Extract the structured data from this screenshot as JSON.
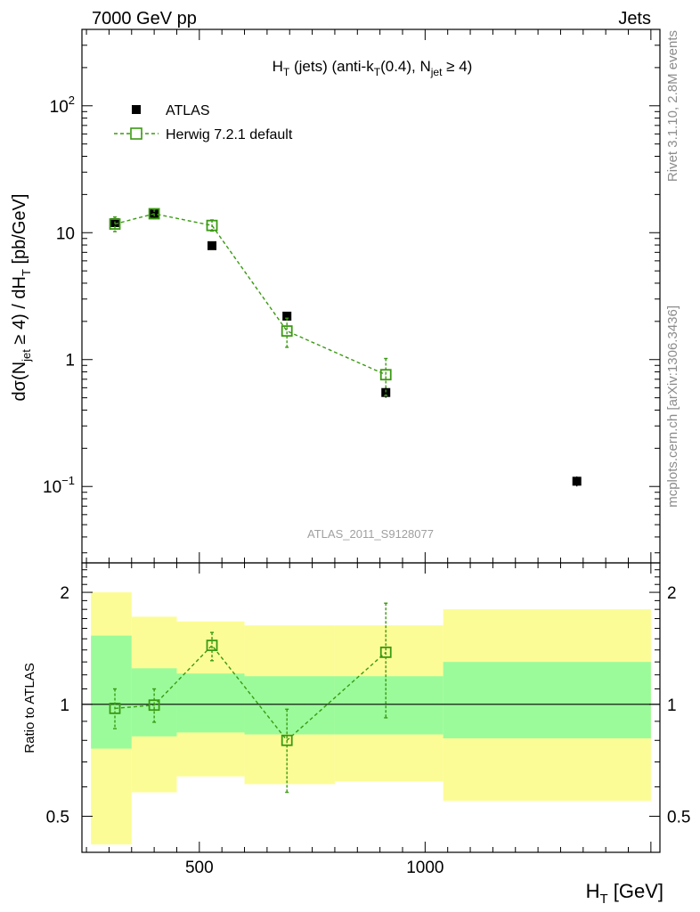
{
  "header": {
    "left": "7000 GeV pp",
    "right": "Jets"
  },
  "side_text": {
    "rivet": "Rivet 3.1.10,  2.8M events",
    "mcplots": "mcplots.cern.ch [arXiv:1306.3436]"
  },
  "watermark": "ATLAS_2011_S9128077",
  "colors": {
    "data": "#000000",
    "mc": "#3a9a12",
    "band_inner": "#9bfb9b",
    "band_outer": "#fcfc96"
  },
  "chart_data": [
    {
      "type": "scatter",
      "panel": "main",
      "title": "H_T (jets) (anti-k_T(0.4), N_jet ≥ 4)",
      "xlabel": "H_T [GeV]",
      "ylabel": "dσ(N_jet ≥ 4) / dH_T [pb/GeV]",
      "yscale": "log",
      "xlim": [
        240,
        1520
      ],
      "ylim": [
        0.025,
        400
      ],
      "legend_position": "top-left",
      "y_ticks": [
        {
          "value": 0.1,
          "base": "10",
          "exp": "−1"
        },
        {
          "value": 1,
          "label": "1"
        },
        {
          "value": 10,
          "label": "10"
        },
        {
          "value": 100,
          "base": "10",
          "exp": "2"
        }
      ],
      "series": [
        {
          "name": "ATLAS",
          "marker": "filled-square",
          "points": [
            {
              "x": 313,
              "y": 12.0,
              "yerr": 0.8
            },
            {
              "x": 400,
              "y": 14.2,
              "yerr": 0.9
            },
            {
              "x": 528,
              "y": 7.9,
              "yerr": 0.5
            },
            {
              "x": 694,
              "y": 2.2,
              "yerr": 0.15
            },
            {
              "x": 913,
              "y": 0.55,
              "yerr": 0.05
            },
            {
              "x": 1336,
              "y": 0.11,
              "yerr": 0.01
            }
          ]
        },
        {
          "name": "Herwig 7.2.1 default",
          "marker": "open-square",
          "line": "dashed",
          "points": [
            {
              "x": 313,
              "y": 11.7,
              "ylow": 10.2,
              "yhigh": 13.3
            },
            {
              "x": 400,
              "y": 14.1,
              "ylow": 12.9,
              "yhigh": 15.3
            },
            {
              "x": 528,
              "y": 11.4,
              "ylow": 10.3,
              "yhigh": 12.6
            },
            {
              "x": 694,
              "y": 1.68,
              "ylow": 1.25,
              "yhigh": 2.12
            },
            {
              "x": 913,
              "y": 0.76,
              "ylow": 0.52,
              "yhigh": 1.02
            }
          ]
        }
      ]
    },
    {
      "type": "scatter",
      "panel": "ratio",
      "xlabel": "H_T [GeV]",
      "ylabel": "Ratio to ATLAS",
      "yscale": "log",
      "xlim": [
        240,
        1520
      ],
      "ylim": [
        0.4,
        2.4
      ],
      "x_ticks": [
        500,
        1000
      ],
      "y_ticks": [
        0.5,
        1,
        2
      ],
      "bands": [
        {
          "xlo": 260,
          "xhi": 350,
          "inner": [
            0.76,
            1.53
          ],
          "outer": [
            0.42,
            2.0
          ]
        },
        {
          "xlo": 350,
          "xhi": 450,
          "inner": [
            0.82,
            1.25
          ],
          "outer": [
            0.58,
            1.72
          ]
        },
        {
          "xlo": 450,
          "xhi": 600,
          "inner": [
            0.84,
            1.21
          ],
          "outer": [
            0.64,
            1.67
          ]
        },
        {
          "xlo": 600,
          "xhi": 800,
          "inner": [
            0.83,
            1.19
          ],
          "outer": [
            0.61,
            1.63
          ]
        },
        {
          "xlo": 800,
          "xhi": 1040,
          "inner": [
            0.83,
            1.19
          ],
          "outer": [
            0.62,
            1.63
          ]
        },
        {
          "xlo": 1040,
          "xhi": 1500,
          "inner": [
            0.81,
            1.3
          ],
          "outer": [
            0.55,
            1.8
          ]
        }
      ],
      "reference": 1,
      "series": [
        {
          "name": "Herwig 7.2.1 default",
          "marker": "open-square",
          "line": "dashed",
          "points": [
            {
              "x": 313,
              "y": 0.975,
              "ylow": 0.86,
              "yhigh": 1.1
            },
            {
              "x": 400,
              "y": 0.995,
              "ylow": 0.895,
              "yhigh": 1.1
            },
            {
              "x": 528,
              "y": 1.44,
              "ylow": 1.31,
              "yhigh": 1.56
            },
            {
              "x": 694,
              "y": 0.8,
              "ylow": 0.58,
              "yhigh": 0.97
            },
            {
              "x": 913,
              "y": 1.38,
              "ylow": 0.92,
              "yhigh": 1.87
            }
          ]
        }
      ]
    }
  ]
}
